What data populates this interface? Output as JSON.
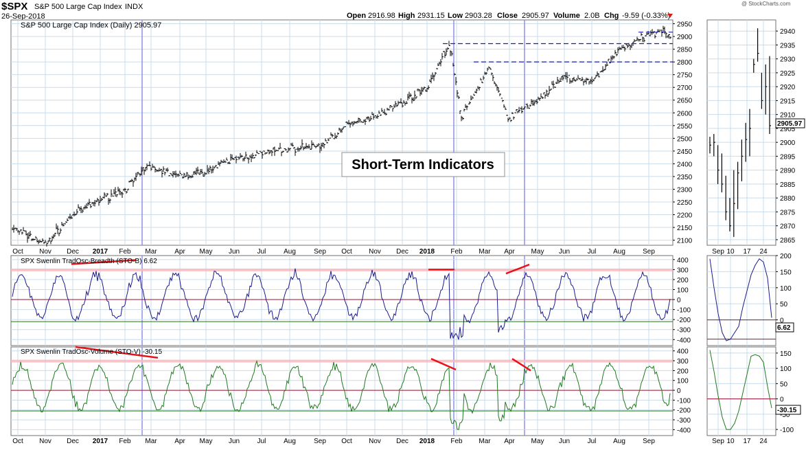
{
  "header": {
    "symbol": "$SPX",
    "name": "S&P 500 Large Cap Index",
    "exchange": "INDX",
    "date": "26-Sep-2018",
    "watermark": "@ StockCharts.com",
    "open_label": "Open",
    "open": "2916.98",
    "high_label": "High",
    "high": "2931.15",
    "low_label": "Low",
    "low": "2903.28",
    "close_label": "Close",
    "close": "2905.97",
    "volume_label": "Volume",
    "volume": "2.0B",
    "chg_label": "Chg",
    "chg": "-9.59 (-0.33%)"
  },
  "annotation_box": "Short-Term Indicators",
  "x_labels_main": [
    "Oct",
    "Nov",
    "Dec",
    "2017",
    "Feb",
    "Mar",
    "Apr",
    "May",
    "Jun",
    "Jul",
    "Aug",
    "Sep",
    "Oct",
    "Nov",
    "Dec",
    "2018",
    "Feb",
    "Mar",
    "Apr",
    "May",
    "Jun",
    "Jul",
    "Aug",
    "Sep"
  ],
  "x_labels_zoom": [
    "Sep",
    "10",
    "17",
    "24"
  ],
  "colors": {
    "price_bars": "#000000",
    "breadth_line": "#1a1a8c",
    "volume_line": "#1f7a1f",
    "trend_red": "#e8121a",
    "support_dash": "#1c1cb0",
    "vertical_marker": "#8f8fe8",
    "grid": "#c9dcea",
    "panel_border": "#707070",
    "overbought_band": "#f7b8bd",
    "zero_line": "#a01030",
    "oversold_line": "#1f7a1f"
  },
  "chart_data": [
    {
      "type": "ohlc",
      "title": "S&P 500 Large Cap Index (Daily) 2905.97",
      "y_ticks": [
        2100,
        2150,
        2200,
        2250,
        2300,
        2350,
        2400,
        2450,
        2500,
        2550,
        2600,
        2650,
        2700,
        2750,
        2800,
        2850,
        2900,
        2950
      ],
      "ylim": [
        2080,
        2965
      ],
      "approx_close_by_month": {
        "x": [
          "2016-10-01",
          "2016-11-04",
          "2016-12-01",
          "2017-01-01",
          "2017-02-01",
          "2017-03-01",
          "2017-04-01",
          "2017-05-01",
          "2017-06-01",
          "2017-07-01",
          "2017-08-01",
          "2017-09-01",
          "2017-10-01",
          "2017-11-01",
          "2017-12-01",
          "2018-01-01",
          "2018-01-26",
          "2018-02-08",
          "2018-03-09",
          "2018-04-02",
          "2018-05-01",
          "2018-06-01",
          "2018-07-01",
          "2018-08-01",
          "2018-09-20",
          "2018-09-26"
        ],
        "y": [
          2150,
          2085,
          2200,
          2260,
          2300,
          2390,
          2350,
          2370,
          2420,
          2440,
          2460,
          2470,
          2550,
          2590,
          2640,
          2700,
          2872,
          2580,
          2780,
          2580,
          2650,
          2740,
          2720,
          2850,
          2930,
          2906
        ]
      },
      "horizontal_resistance_lines": [
        2872,
        2800
      ],
      "current_value": 2905.97
    },
    {
      "type": "line",
      "title": "SPX Swenlin TradOsc-Breadth (STO-B) 6.62",
      "series": [
        {
          "name": "SPX Swenlin TradOsc-Breadth (STO-B)",
          "last": 6.62
        }
      ],
      "y_ticks": [
        -400,
        -300,
        -200,
        -100,
        0,
        100,
        200,
        300,
        400
      ],
      "ylim": [
        -460,
        440
      ],
      "overbought_band": [
        290,
        310
      ],
      "zero_line": 0,
      "oversold_line": -220
    },
    {
      "type": "line",
      "title": "SPX Swenlin TradOsc-Volume (STO-V) -30.15",
      "series": [
        {
          "name": "SPX Swenlin TradOsc-Volume (STO-V)",
          "last": -30.15
        }
      ],
      "y_ticks": [
        -400,
        -300,
        -200,
        -100,
        0,
        100,
        200,
        300,
        400
      ],
      "ylim": [
        -460,
        440
      ],
      "overbought_band": [
        290,
        310
      ],
      "zero_line": 0,
      "oversold_line": -210
    },
    {
      "type": "ohlc",
      "title": "",
      "y_ticks": [
        2865,
        2870,
        2875,
        2880,
        2885,
        2890,
        2895,
        2900,
        2905,
        2910,
        2915,
        2920,
        2925,
        2930,
        2935,
        2940
      ],
      "ylim": [
        2863,
        2944
      ],
      "x": [
        "Sep",
        "10",
        "17",
        "24"
      ],
      "current_value": 2905.97
    },
    {
      "type": "line",
      "title": "",
      "y_ticks": [
        0,
        50,
        100,
        150,
        200
      ],
      "ylim": [
        -80,
        200
      ],
      "zero_line": 0,
      "oversold_line": -60,
      "current_value": "6.62"
    },
    {
      "type": "line",
      "title": "",
      "y_ticks": [
        -100,
        -50,
        0,
        50,
        100,
        150
      ],
      "ylim": [
        -120,
        170
      ],
      "zero_line": 0,
      "current_value": "-30.15"
    }
  ]
}
